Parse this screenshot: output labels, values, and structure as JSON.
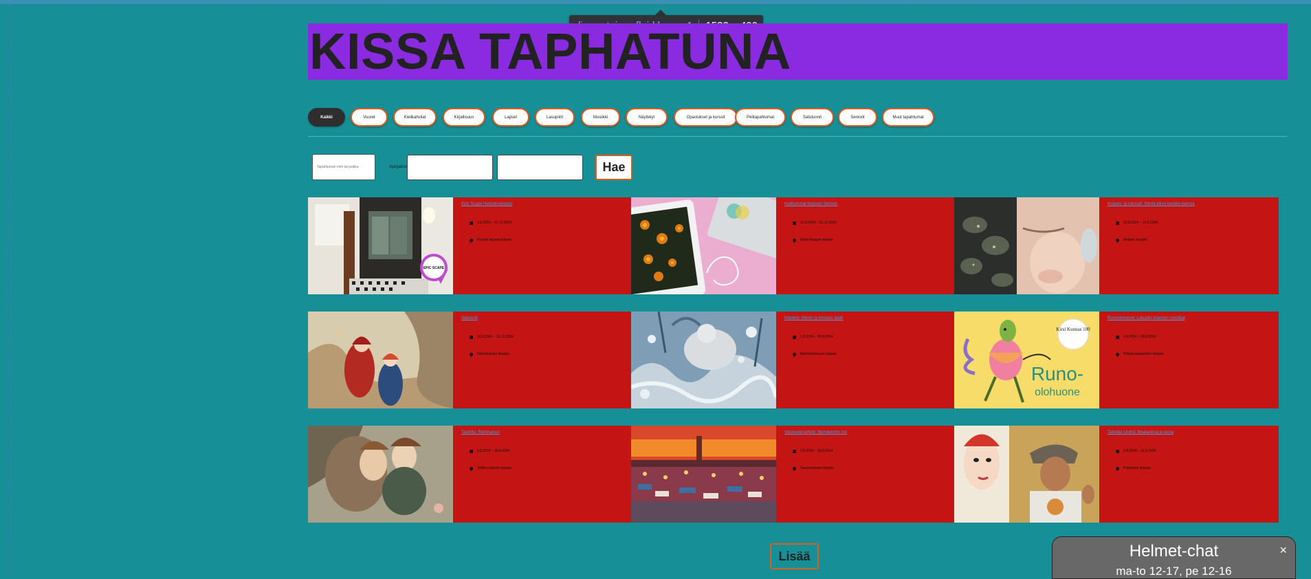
{
  "devtools": {
    "selector_tag": "div",
    "selector_class": ".container-fluid.home-1",
    "dimensions": "1532 × 400"
  },
  "site_title": "KISSA TAPHATUNA",
  "categories": [
    "Kaikki",
    "Vuoret",
    "Kielikahvilat",
    "Kirjallisuus",
    "Lapset",
    "Lasupiirit",
    "Musiikki",
    "Näyttelyt",
    "Opastukset ja kurssit",
    "Pelitapahtumat",
    "Satutunnit",
    "Seniorit",
    "Muut tapahtumat"
  ],
  "filters": {
    "search_placeholder": "Tapahtuman nimi tai paikka",
    "period_label": "Ajanjakso",
    "search_button": "Hae"
  },
  "events": [
    {
      "title": "Epic Scape Helsinki-kirjasto",
      "dates": "1.8.2024 – 31.12.2024",
      "place": "Pasilan kirjasto kirjasto"
    },
    {
      "title": "Kielikahvilat kirjaston ihmisiin",
      "dates": "15.8.2024 – 31.12.2024",
      "place": "Etelä-Haagan kirjasto"
    },
    {
      "title": "Kirjasto- ja lukusali: Silmiä kiinni kevään kanssa",
      "dates": "15.8.2024 – 19.6.2024",
      "place": "Arabian kirjasto"
    },
    {
      "title": "Satutunti",
      "dates": "16.8.2024 – 15.12.2024",
      "place": "Itäkeskuksen kirjasto"
    },
    {
      "title": "Näyttely: Meren ja ihmisen taide",
      "dates": "1.8.2024 – 30.8.2024",
      "place": "Malminkartanon kirjasto"
    },
    {
      "title": "Runoolohuone: Lukupiiri kirjaston runoilijat",
      "dates": "1.8.2024 – 30.8.2024",
      "place": "Pikkuhuopalahden kirjasto"
    },
    {
      "title": "Taidetta: Renesanssi",
      "dates": "2.8.2024 – 30.8.2024",
      "place": "Vallilan kirjasto kirjasto"
    },
    {
      "title": "Valokuvanäyttely: Marrakeshin tori",
      "dates": "2.8.2024 – 30.8.2024",
      "place": "Suomenlinnan kirjasto"
    },
    {
      "title": "Taiteilija tutuksi: Maalauksia ja kuvia",
      "dates": "2.8.2024 – 31.8.2024",
      "place": "Pohjoinen kirjasto"
    }
  ],
  "image_texts": {
    "epic_pin": "EPIC SCAPE",
    "kirsi_badge": "Kirsi Kunnas 100",
    "runo_1": "Runo-",
    "runo_2": "olohuone"
  },
  "more_button": "Lisää",
  "chat": {
    "title": "Helmet-chat",
    "hours": "ma-to 12-17, pe 12-16",
    "close": "×"
  },
  "colors": {
    "background": "#178f96",
    "title_bar": "#8a2be2",
    "card": "#c41414",
    "accent_border": "#e05a1a"
  }
}
